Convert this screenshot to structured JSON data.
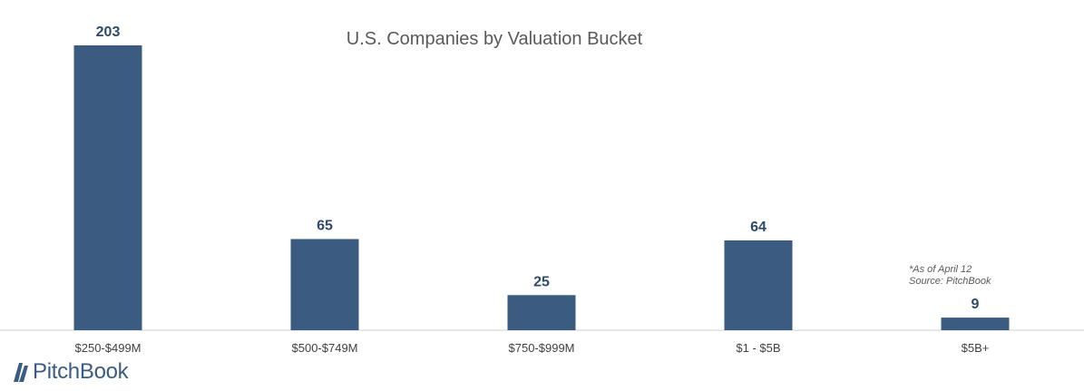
{
  "brand": {
    "name": "PitchBook",
    "color": "#3b5b80"
  },
  "chart_data": {
    "type": "bar",
    "title": "U.S. Companies by Valuation Bucket",
    "categories": [
      "$250-$499M",
      "$500-$749M",
      "$750-$999M",
      "$1 - $5B",
      "$5B+"
    ],
    "values": [
      203,
      65,
      25,
      64,
      9
    ],
    "data_labels": [
      "203",
      "65",
      "25",
      "64",
      "9"
    ],
    "xlabel": "",
    "ylabel": "",
    "ylim": [
      0,
      203
    ],
    "grid": false,
    "legend": "none",
    "bar_color": "#3b5b80",
    "annotations": [
      "*As of April 12",
      "Source: PitchBook"
    ]
  }
}
